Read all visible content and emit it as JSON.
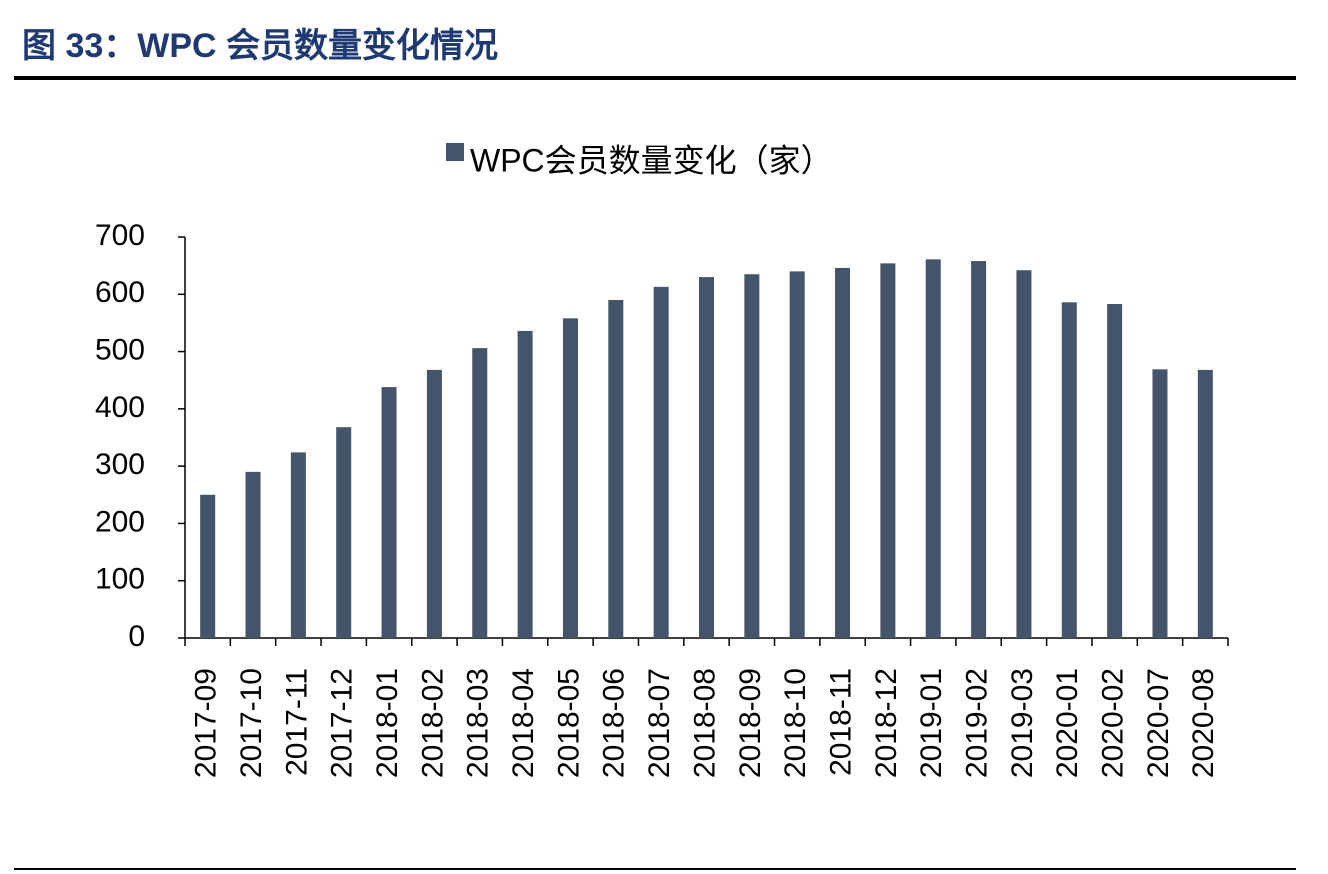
{
  "chart_data": {
    "type": "bar",
    "title": "图 33：WPC 会员数量变化情况",
    "categories": [
      "2017-09",
      "2017-10",
      "2017-11",
      "2017-12",
      "2018-01",
      "2018-02",
      "2018-03",
      "2018-04",
      "2018-05",
      "2018-06",
      "2018-07",
      "2018-08",
      "2018-09",
      "2018-10",
      "2018-11",
      "2018-12",
      "2019-01",
      "2019-02",
      "2019-03",
      "2020-01",
      "2020-02",
      "2020-07",
      "2020-08"
    ],
    "series": [
      {
        "name": "WPC会员数量变化（家）",
        "color": "#44546a",
        "values": [
          250,
          290,
          324,
          368,
          438,
          468,
          506,
          536,
          558,
          590,
          613,
          630,
          635,
          640,
          646,
          654,
          661,
          658,
          642,
          586,
          583,
          469,
          468
        ]
      }
    ],
    "ylim": [
      0,
      700
    ],
    "yticks": [
      0,
      100,
      200,
      300,
      400,
      500,
      600,
      700
    ],
    "grid": false
  }
}
